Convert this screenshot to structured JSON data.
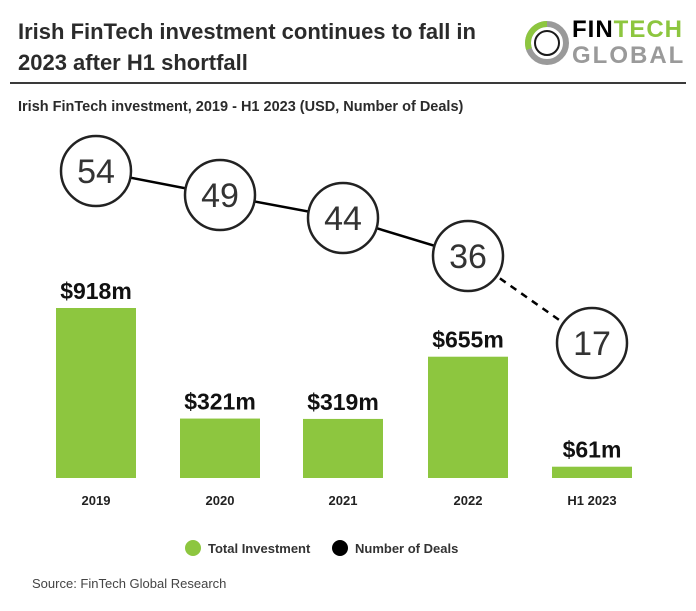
{
  "header": {
    "title_line1": "Irish FinTech investment continues to fall in",
    "title_line2": "2023 after H1 shortfall",
    "logo_fin": "FIN",
    "logo_tech": "TECH",
    "logo_global": "GLOBAL"
  },
  "subtitle": "Irish FinTech investment, 2019 - H1 2023  (USD, Number of Deals)",
  "colors": {
    "bar": "#8dc63f",
    "line": "#000000",
    "circle_stroke": "#222222",
    "logo_ring_green": "#8dc63f",
    "logo_ring_gray": "#9a9a9a"
  },
  "chart_data": {
    "type": "bar",
    "categories": [
      "2019",
      "2020",
      "2021",
      "2022",
      "H1 2023"
    ],
    "series": [
      {
        "name": "Total Investment",
        "type": "bar",
        "unit": "USD m",
        "values": [
          918,
          321,
          319,
          655,
          61
        ],
        "labels": [
          "$918m",
          "$321m",
          "$319m",
          "$655m",
          "$61m"
        ]
      },
      {
        "name": "Number of Deals",
        "type": "line",
        "values": [
          54,
          49,
          44,
          36,
          17
        ],
        "labels": [
          "54",
          "49",
          "44",
          "36",
          "17"
        ],
        "dashed_last_segment": true
      }
    ],
    "legend": [
      "Total Investment",
      "Number of Deals"
    ],
    "legend_position": "bottom",
    "grid": false
  },
  "source": "Source: FinTech Global Research"
}
